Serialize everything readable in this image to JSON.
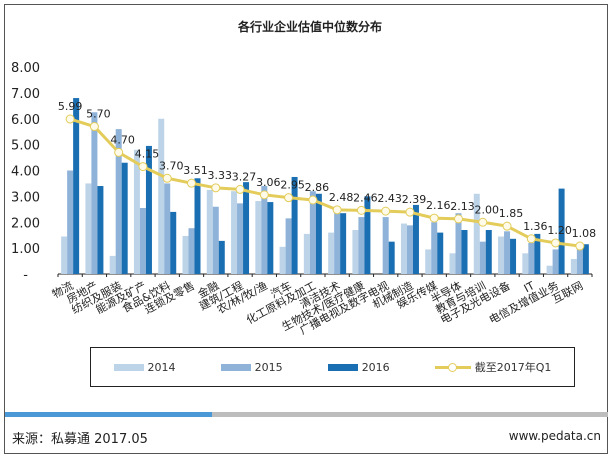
{
  "chart_data": {
    "type": "bar",
    "title": "各行业企业估值中位数分布",
    "categories": [
      "物流",
      "房地产",
      "纺织及服装",
      "能源及矿产",
      "食品&饮料",
      "连锁及零售",
      "金融",
      "建筑/工程",
      "农/林/牧/渔",
      "汽车",
      "化工原料及加工",
      "清洁技术",
      "生物技术/医疗健康",
      "广播电视及数字电视",
      "机械制造",
      "娱乐传媒",
      "半导体",
      "教育与培训",
      "电子及光电设备",
      "IT",
      "电信及增值业务",
      "互联网"
    ],
    "ylim": [
      0,
      8
    ],
    "yticks": [
      "-",
      "1.00",
      "2.00",
      "3.00",
      "4.00",
      "5.00",
      "6.00",
      "7.00",
      "8.00"
    ],
    "grid": false,
    "legend_position": "bottom",
    "series": [
      {
        "name": "2014",
        "type": "bar",
        "color": "#bdd4e8",
        "values": [
          1.45,
          3.5,
          0.7,
          4.8,
          6.0,
          1.47,
          3.25,
          3.2,
          2.82,
          1.05,
          1.55,
          1.6,
          1.7,
          0,
          1.95,
          0.95,
          0.8,
          3.1,
          1.45,
          0.8,
          0.32,
          0.58
        ]
      },
      {
        "name": "2015",
        "type": "bar",
        "color": "#8fb2d9",
        "values": [
          4.0,
          6.25,
          5.6,
          2.55,
          3.5,
          1.77,
          2.6,
          2.73,
          3.4,
          2.15,
          3.2,
          2.35,
          2.2,
          2.2,
          1.88,
          2.0,
          2.35,
          1.25,
          1.65,
          1.2,
          0.95,
          1.08
        ]
      },
      {
        "name": "2016",
        "type": "bar",
        "color": "#1a6fb3",
        "values": [
          6.8,
          3.4,
          4.3,
          4.95,
          2.4,
          3.7,
          1.28,
          3.55,
          2.78,
          3.75,
          3.1,
          2.35,
          3.0,
          1.25,
          2.67,
          1.6,
          1.7,
          1.7,
          1.36,
          1.55,
          3.3,
          1.15
        ]
      },
      {
        "name": "截至2017年Q1",
        "type": "line",
        "color": "#e3cc5a",
        "values": [
          5.99,
          5.7,
          4.7,
          4.15,
          3.7,
          3.51,
          3.33,
          3.27,
          3.06,
          2.95,
          2.86,
          2.48,
          2.46,
          2.43,
          2.39,
          2.16,
          2.13,
          2.0,
          1.85,
          1.36,
          1.2,
          1.08
        ],
        "labels": [
          "5.99",
          "5.70",
          "4.70",
          "4.15",
          "3.70",
          "3.51",
          "3.33",
          "3.27",
          "3.06",
          "2.95",
          "2.86",
          "2.48",
          "2.46",
          "2.43",
          "2.39",
          "2.16",
          "2.13",
          "2.00",
          "1.85",
          "1.36",
          "1.20",
          "1.08"
        ]
      }
    ]
  },
  "footer": {
    "source": "来源：私募通  2017.05",
    "site": "www.pedata.cn"
  }
}
